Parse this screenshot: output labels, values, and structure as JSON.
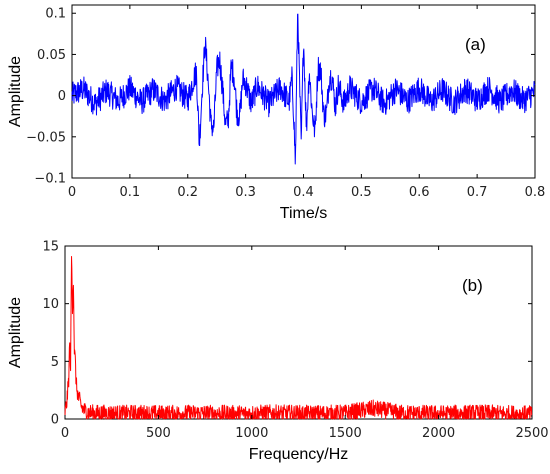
{
  "chart_data": [
    {
      "type": "line",
      "panel_label": "(a)",
      "xlabel": "Time/s",
      "ylabel": "Amplitude",
      "xlim": [
        0,
        0.8
      ],
      "ylim": [
        -0.1,
        0.11
      ],
      "x_ticks": [
        0,
        0.1,
        0.2,
        0.3,
        0.4,
        0.5,
        0.6,
        0.7,
        0.8
      ],
      "x_tick_labels": [
        "0",
        "0.1",
        "0.2",
        "0.3",
        "0.4",
        "0.5",
        "0.6",
        "0.7",
        "0.8"
      ],
      "y_ticks": [
        -0.1,
        -0.05,
        0,
        0.05,
        0.1
      ],
      "y_tick_labels": [
        "−0.1",
        "−0.05",
        "0",
        "0.05",
        "0.1"
      ],
      "grid": false,
      "color": "#0000ff",
      "series": [
        {
          "x": [
            0,
            0.02,
            0.04,
            0.06,
            0.08,
            0.1,
            0.12,
            0.14,
            0.16,
            0.18,
            0.2,
            0.21,
            0.215,
            0.22,
            0.225,
            0.23,
            0.235,
            0.24,
            0.245,
            0.25,
            0.255,
            0.26,
            0.265,
            0.27,
            0.275,
            0.28,
            0.285,
            0.29,
            0.295,
            0.3,
            0.31,
            0.32,
            0.34,
            0.36,
            0.375,
            0.38,
            0.383,
            0.386,
            0.39,
            0.393,
            0.396,
            0.4,
            0.405,
            0.41,
            0.415,
            0.42,
            0.425,
            0.43,
            0.435,
            0.44,
            0.445,
            0.45,
            0.455,
            0.46,
            0.47,
            0.48,
            0.5,
            0.52,
            0.54,
            0.56,
            0.58,
            0.6,
            0.62,
            0.64,
            0.66,
            0.68,
            0.7,
            0.72,
            0.74,
            0.76,
            0.78,
            0.8
          ],
          "y": [
            0.0,
            0.008,
            -0.01,
            0.006,
            -0.007,
            0.009,
            -0.008,
            0.007,
            -0.006,
            0.01,
            -0.005,
            0.02,
            0.03,
            -0.06,
            0.01,
            0.065,
            0.02,
            -0.035,
            -0.04,
            0.03,
            0.045,
            0.01,
            -0.035,
            -0.03,
            0.035,
            0.025,
            -0.02,
            -0.025,
            0.02,
            0.015,
            -0.01,
            0.012,
            -0.01,
            0.01,
            -0.008,
            0.02,
            -0.02,
            -0.085,
            0.108,
            0.02,
            -0.06,
            0.07,
            -0.04,
            0.03,
            -0.02,
            -0.045,
            0.035,
            0.03,
            -0.025,
            -0.02,
            0.025,
            0.02,
            -0.015,
            0.012,
            -0.01,
            0.01,
            -0.008,
            0.009,
            -0.01,
            0.008,
            -0.007,
            0.009,
            -0.008,
            0.007,
            -0.009,
            0.008,
            -0.006,
            0.009,
            -0.008,
            0.007,
            -0.006,
            0.005
          ]
        }
      ]
    },
    {
      "type": "line",
      "panel_label": "(b)",
      "xlabel": "Frequency/Hz",
      "ylabel": "Amplitude",
      "xlim": [
        0,
        2500
      ],
      "ylim": [
        0,
        15
      ],
      "x_ticks": [
        0,
        500,
        1000,
        1500,
        2000,
        2500
      ],
      "x_tick_labels": [
        "0",
        "500",
        "1000",
        "1500",
        "2000",
        "2500"
      ],
      "y_ticks": [
        0,
        5,
        10,
        15
      ],
      "y_tick_labels": [
        "0",
        "5",
        "10",
        "15"
      ],
      "grid": false,
      "color": "#ff0000",
      "series": [
        {
          "x": [
            0,
            10,
            20,
            25,
            30,
            35,
            40,
            45,
            50,
            55,
            60,
            70,
            80,
            90,
            100,
            120,
            150,
            200,
            300,
            400,
            500,
            700,
            900,
            1100,
            1300,
            1500,
            1650,
            1800,
            2000,
            2200,
            2400,
            2500
          ],
          "y": [
            0.5,
            1.5,
            3.5,
            6.8,
            4.5,
            14.3,
            9.5,
            12.2,
            6.0,
            5.0,
            3.0,
            2.0,
            1.5,
            1.0,
            0.8,
            0.6,
            0.5,
            0.5,
            0.45,
            0.5,
            0.45,
            0.5,
            0.45,
            0.5,
            0.45,
            0.5,
            0.9,
            0.5,
            0.45,
            0.5,
            0.45,
            0.4
          ]
        }
      ]
    }
  ]
}
